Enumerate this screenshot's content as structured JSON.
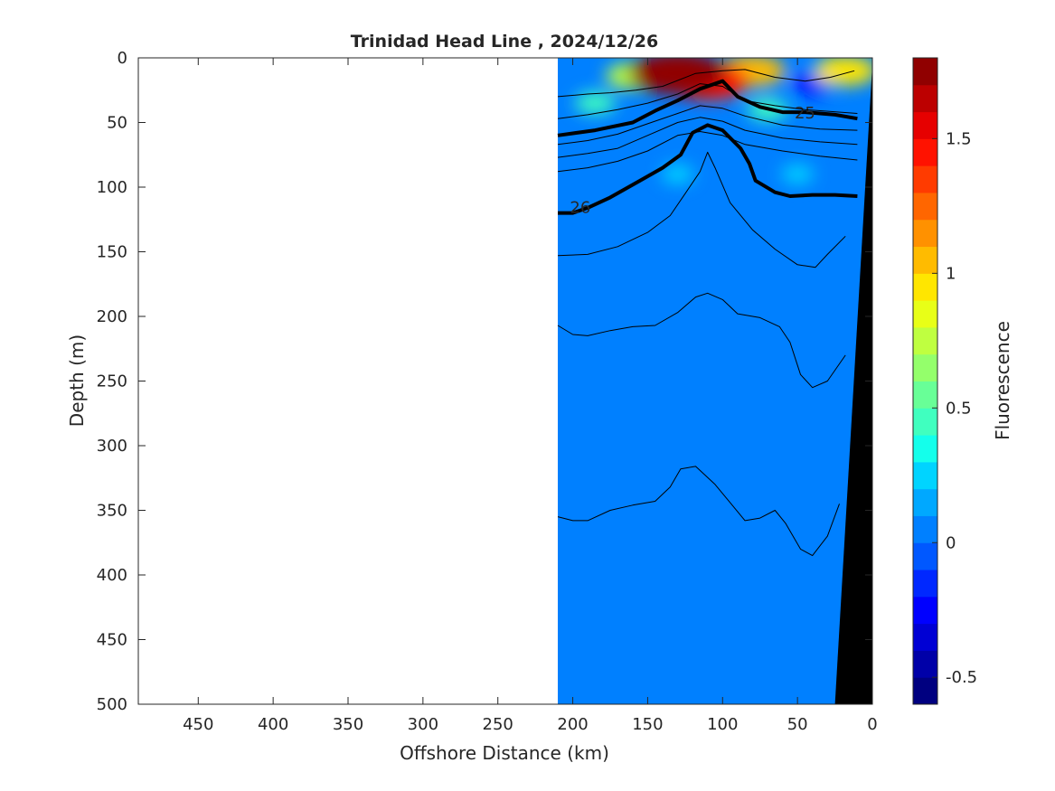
{
  "chart_data": {
    "type": "heatmap",
    "title": "Trinidad Head Line , 2024/12/26",
    "xlabel": "Offshore Distance (km)",
    "ylabel": "Depth (m)",
    "colorbar_label": "Fluorescence",
    "xlim": [
      490,
      0
    ],
    "ylim": [
      500,
      0
    ],
    "x_ticks": [
      {
        "v": 450,
        "label": "450"
      },
      {
        "v": 400,
        "label": "400"
      },
      {
        "v": 350,
        "label": "350"
      },
      {
        "v": 300,
        "label": "300"
      },
      {
        "v": 250,
        "label": "250"
      },
      {
        "v": 200,
        "label": "200"
      },
      {
        "v": 150,
        "label": "150"
      },
      {
        "v": 100,
        "label": "100"
      },
      {
        "v": 50,
        "label": "50"
      },
      {
        "v": 0,
        "label": "0"
      }
    ],
    "y_ticks": [
      {
        "v": 0,
        "label": "0"
      },
      {
        "v": 50,
        "label": "50"
      },
      {
        "v": 100,
        "label": "100"
      },
      {
        "v": 150,
        "label": "150"
      },
      {
        "v": 200,
        "label": "200"
      },
      {
        "v": 250,
        "label": "250"
      },
      {
        "v": 300,
        "label": "300"
      },
      {
        "v": 350,
        "label": "350"
      },
      {
        "v": 400,
        "label": "400"
      },
      {
        "v": 450,
        "label": "450"
      },
      {
        "v": 500,
        "label": "500"
      }
    ],
    "colorbar": {
      "range": [
        -0.6,
        1.8
      ],
      "levels": 24,
      "colors": [
        "#000080",
        "#0000a8",
        "#0000d4",
        "#0000ff",
        "#0028ff",
        "#0058ff",
        "#0080ff",
        "#00a8ff",
        "#00d4ff",
        "#14ffeb",
        "#40ffbf",
        "#68ff97",
        "#94ff6b",
        "#bfff40",
        "#e8ff17",
        "#ffe600",
        "#ffbb00",
        "#ff9100",
        "#ff6600",
        "#ff3b00",
        "#ff1200",
        "#e60000",
        "#bc0000",
        "#900000"
      ],
      "ticks": [
        {
          "v": -0.5,
          "label": "-0.5"
        },
        {
          "v": 0,
          "label": "0"
        },
        {
          "v": 0.5,
          "label": "0.5"
        },
        {
          "v": 1,
          "label": "1"
        },
        {
          "v": 1.5,
          "label": "1.5"
        }
      ]
    },
    "data_extent_x_km": [
      210,
      0
    ],
    "background_value": 0.05,
    "features": [
      {
        "kind": "high",
        "x": 130,
        "y": 12,
        "value": 1.7
      },
      {
        "kind": "high",
        "x": 110,
        "y": 18,
        "value": 1.4
      },
      {
        "kind": "high",
        "x": 80,
        "y": 10,
        "value": 1.0
      },
      {
        "kind": "high",
        "x": 160,
        "y": 14,
        "value": 0.7
      },
      {
        "kind": "high",
        "x": 18,
        "y": 10,
        "value": 0.9
      },
      {
        "kind": "low",
        "x": 40,
        "y": 20,
        "value": -0.3
      },
      {
        "kind": "moderate",
        "x": 185,
        "y": 35,
        "value": 0.4
      },
      {
        "kind": "moderate",
        "x": 70,
        "y": 40,
        "value": 0.4
      },
      {
        "kind": "moderate",
        "x": 130,
        "y": 90,
        "value": 0.2
      },
      {
        "kind": "moderate",
        "x": 50,
        "y": 90,
        "value": 0.2
      }
    ],
    "contours": [
      {
        "label": "25",
        "bold": true,
        "label_at": [
          45,
          42
        ],
        "points": [
          [
            210,
            60
          ],
          [
            185,
            56
          ],
          [
            160,
            50
          ],
          [
            145,
            41
          ],
          [
            130,
            33
          ],
          [
            115,
            24
          ],
          [
            100,
            18
          ],
          [
            90,
            30
          ],
          [
            75,
            38
          ],
          [
            60,
            42
          ],
          [
            45,
            42
          ],
          [
            25,
            44
          ],
          [
            10,
            47
          ]
        ]
      },
      {
        "label": "26",
        "bold": true,
        "label_at": [
          195,
          115
        ],
        "points": [
          [
            210,
            120
          ],
          [
            200,
            120
          ],
          [
            190,
            116
          ],
          [
            175,
            108
          ],
          [
            155,
            95
          ],
          [
            140,
            85
          ],
          [
            128,
            75
          ],
          [
            120,
            58
          ],
          [
            110,
            52
          ],
          [
            100,
            56
          ],
          [
            88,
            70
          ],
          [
            82,
            82
          ],
          [
            78,
            95
          ],
          [
            65,
            104
          ],
          [
            55,
            107
          ],
          [
            40,
            106
          ],
          [
            25,
            106
          ],
          [
            10,
            107
          ]
        ]
      },
      {
        "label": "",
        "bold": false,
        "points": [
          [
            210,
            30
          ],
          [
            190,
            28
          ],
          [
            175,
            27
          ],
          [
            158,
            25
          ],
          [
            140,
            22
          ],
          [
            118,
            12
          ],
          [
            100,
            10
          ],
          [
            85,
            9
          ],
          [
            65,
            15
          ],
          [
            45,
            18
          ],
          [
            28,
            15
          ],
          [
            12,
            10
          ]
        ]
      },
      {
        "label": "",
        "bold": false,
        "points": [
          [
            210,
            47
          ],
          [
            190,
            44
          ],
          [
            170,
            40
          ],
          [
            150,
            35
          ],
          [
            130,
            28
          ],
          [
            115,
            20
          ],
          [
            100,
            22
          ],
          [
            85,
            33
          ],
          [
            65,
            37
          ],
          [
            45,
            40
          ],
          [
            10,
            43
          ]
        ]
      },
      {
        "label": "",
        "bold": false,
        "points": [
          [
            210,
            67
          ],
          [
            190,
            64
          ],
          [
            170,
            59
          ],
          [
            150,
            51
          ],
          [
            130,
            43
          ],
          [
            115,
            37
          ],
          [
            100,
            39
          ],
          [
            85,
            45
          ],
          [
            60,
            52
          ],
          [
            35,
            55
          ],
          [
            10,
            56
          ]
        ]
      },
      {
        "label": "",
        "bold": false,
        "points": [
          [
            210,
            77
          ],
          [
            190,
            74
          ],
          [
            170,
            70
          ],
          [
            150,
            60
          ],
          [
            130,
            50
          ],
          [
            115,
            46
          ],
          [
            100,
            49
          ],
          [
            85,
            56
          ],
          [
            60,
            62
          ],
          [
            35,
            65
          ],
          [
            10,
            67
          ]
        ]
      },
      {
        "label": "",
        "bold": false,
        "points": [
          [
            210,
            88
          ],
          [
            190,
            85
          ],
          [
            170,
            80
          ],
          [
            150,
            72
          ],
          [
            130,
            60
          ],
          [
            115,
            57
          ],
          [
            100,
            60
          ],
          [
            85,
            67
          ],
          [
            60,
            72
          ],
          [
            35,
            76
          ],
          [
            10,
            79
          ]
        ]
      },
      {
        "label": "",
        "bold": false,
        "points": [
          [
            210,
            153
          ],
          [
            190,
            152
          ],
          [
            170,
            146
          ],
          [
            150,
            135
          ],
          [
            135,
            122
          ],
          [
            125,
            105
          ],
          [
            115,
            88
          ],
          [
            110,
            73
          ],
          [
            105,
            85
          ],
          [
            95,
            112
          ],
          [
            80,
            133
          ],
          [
            65,
            148
          ],
          [
            50,
            160
          ],
          [
            38,
            162
          ],
          [
            30,
            152
          ],
          [
            18,
            138
          ]
        ]
      },
      {
        "label": "",
        "bold": false,
        "points": [
          [
            210,
            207
          ],
          [
            200,
            214
          ],
          [
            190,
            215
          ],
          [
            175,
            211
          ],
          [
            160,
            208
          ],
          [
            145,
            207
          ],
          [
            130,
            197
          ],
          [
            118,
            185
          ],
          [
            110,
            182
          ],
          [
            100,
            187
          ],
          [
            90,
            198
          ],
          [
            75,
            201
          ],
          [
            62,
            208
          ],
          [
            55,
            220
          ],
          [
            48,
            245
          ],
          [
            40,
            255
          ],
          [
            30,
            250
          ],
          [
            18,
            230
          ]
        ]
      },
      {
        "label": "",
        "bold": false,
        "points": [
          [
            210,
            355
          ],
          [
            200,
            358
          ],
          [
            190,
            358
          ],
          [
            175,
            350
          ],
          [
            160,
            346
          ],
          [
            145,
            343
          ],
          [
            135,
            332
          ],
          [
            128,
            318
          ],
          [
            118,
            316
          ],
          [
            105,
            330
          ],
          [
            95,
            344
          ],
          [
            85,
            358
          ],
          [
            75,
            356
          ],
          [
            65,
            350
          ],
          [
            58,
            360
          ],
          [
            48,
            380
          ],
          [
            40,
            385
          ],
          [
            30,
            370
          ],
          [
            22,
            345
          ]
        ]
      }
    ],
    "seafloor": {
      "points": [
        [
          0,
          5
        ],
        [
          25,
          500
        ],
        [
          0,
          500
        ]
      ],
      "color": "#000000"
    }
  }
}
